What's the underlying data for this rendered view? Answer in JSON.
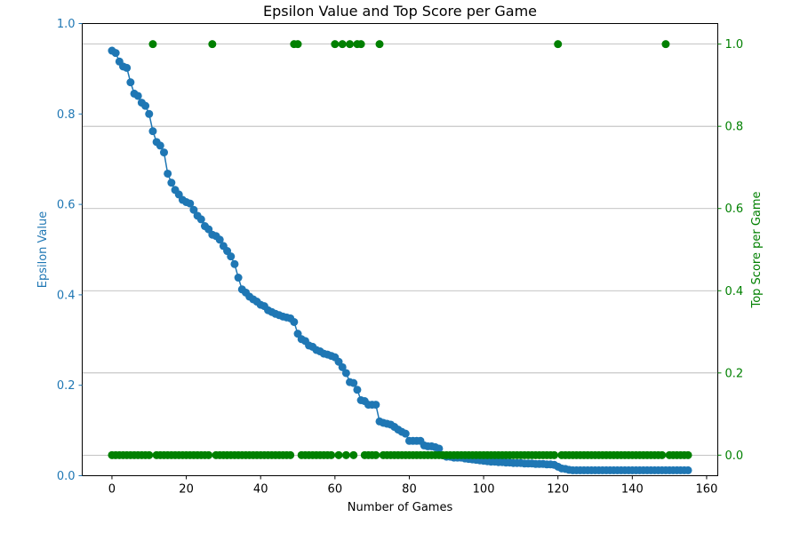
{
  "chart_data": {
    "type": "line",
    "title": "Epsilon Value and Top Score per Game",
    "xlabel": "Number of Games",
    "ylabel": "Epsilon Value",
    "ylabel_right": "Top Score per Game",
    "xlim": [
      -8,
      163
    ],
    "ylim": [
      0,
      1
    ],
    "ylim_right": [
      -0.05,
      1.05
    ],
    "xticks": [
      0,
      20,
      40,
      60,
      80,
      100,
      120,
      140,
      160
    ],
    "yticks_left": [
      0.0,
      0.2,
      0.4,
      0.6,
      0.8,
      1.0
    ],
    "yticks_right": [
      0.0,
      0.2,
      0.4,
      0.6,
      0.8,
      1.0
    ],
    "grid": "horizontal lines at right-axis ticks",
    "colors": {
      "epsilon": "#1f77b4",
      "score": "#008000"
    },
    "series": [
      {
        "name": "Epsilon Value",
        "axis": "left",
        "style": "line+markers",
        "x": [
          0,
          1,
          2,
          3,
          4,
          5,
          6,
          7,
          8,
          9,
          10,
          11,
          12,
          13,
          14,
          15,
          16,
          17,
          18,
          19,
          20,
          21,
          22,
          23,
          24,
          25,
          26,
          27,
          28,
          29,
          30,
          31,
          32,
          33,
          34,
          35,
          36,
          37,
          38,
          39,
          40,
          41,
          42,
          43,
          44,
          45,
          46,
          47,
          48,
          49,
          50,
          51,
          52,
          53,
          54,
          55,
          56,
          57,
          58,
          59,
          60,
          61,
          62,
          63,
          64,
          65,
          66,
          67,
          68,
          69,
          70,
          71,
          72,
          73,
          74,
          75,
          76,
          77,
          78,
          79,
          80,
          81,
          82,
          83,
          84,
          85,
          86,
          87,
          88,
          89,
          90,
          91,
          92,
          93,
          94,
          95,
          96,
          97,
          98,
          99,
          100,
          101,
          102,
          103,
          104,
          105,
          106,
          107,
          108,
          109,
          110,
          111,
          112,
          113,
          114,
          115,
          116,
          117,
          118,
          119,
          120,
          121,
          122,
          123,
          124,
          125,
          126,
          127,
          128,
          129,
          130,
          131,
          132,
          133,
          134,
          135,
          136,
          137,
          138,
          139,
          140,
          141,
          142,
          143,
          144,
          145,
          146,
          147,
          148,
          149,
          150,
          151,
          152,
          153,
          154,
          155
        ],
        "values": [
          0.94,
          0.935,
          0.916,
          0.905,
          0.902,
          0.87,
          0.845,
          0.84,
          0.825,
          0.818,
          0.8,
          0.762,
          0.738,
          0.73,
          0.715,
          0.668,
          0.648,
          0.632,
          0.622,
          0.61,
          0.605,
          0.602,
          0.588,
          0.575,
          0.567,
          0.552,
          0.545,
          0.533,
          0.53,
          0.522,
          0.508,
          0.497,
          0.485,
          0.468,
          0.438,
          0.412,
          0.405,
          0.396,
          0.39,
          0.385,
          0.378,
          0.375,
          0.366,
          0.362,
          0.358,
          0.355,
          0.352,
          0.35,
          0.348,
          0.34,
          0.314,
          0.302,
          0.298,
          0.288,
          0.285,
          0.278,
          0.275,
          0.27,
          0.268,
          0.265,
          0.262,
          0.252,
          0.24,
          0.227,
          0.207,
          0.205,
          0.19,
          0.167,
          0.165,
          0.157,
          0.157,
          0.157,
          0.12,
          0.117,
          0.115,
          0.113,
          0.108,
          0.102,
          0.097,
          0.093,
          0.077,
          0.077,
          0.077,
          0.077,
          0.067,
          0.065,
          0.065,
          0.063,
          0.06,
          0.045,
          0.042,
          0.042,
          0.04,
          0.04,
          0.04,
          0.038,
          0.037,
          0.036,
          0.035,
          0.034,
          0.033,
          0.032,
          0.031,
          0.031,
          0.03,
          0.03,
          0.029,
          0.029,
          0.028,
          0.028,
          0.028,
          0.027,
          0.027,
          0.027,
          0.026,
          0.026,
          0.026,
          0.025,
          0.025,
          0.024,
          0.02,
          0.016,
          0.015,
          0.013,
          0.012,
          0.012,
          0.012,
          0.012,
          0.012,
          0.012,
          0.012,
          0.012,
          0.012,
          0.012,
          0.012,
          0.012,
          0.012,
          0.012,
          0.012,
          0.012,
          0.012,
          0.012,
          0.012,
          0.012,
          0.012,
          0.012,
          0.012,
          0.012,
          0.012,
          0.012,
          0.012,
          0.012,
          0.012,
          0.012,
          0.012,
          0.012
        ]
      },
      {
        "name": "Top Score per Game",
        "axis": "right",
        "style": "markers",
        "x": [
          0,
          1,
          2,
          3,
          4,
          5,
          6,
          7,
          8,
          9,
          10,
          11,
          12,
          13,
          14,
          15,
          16,
          17,
          18,
          19,
          20,
          21,
          22,
          23,
          24,
          25,
          26,
          27,
          28,
          29,
          30,
          31,
          32,
          33,
          34,
          35,
          36,
          37,
          38,
          39,
          40,
          41,
          42,
          43,
          44,
          45,
          46,
          47,
          48,
          49,
          50,
          51,
          52,
          53,
          54,
          55,
          56,
          57,
          58,
          59,
          60,
          61,
          62,
          63,
          64,
          65,
          66,
          67,
          68,
          69,
          70,
          71,
          72,
          73,
          74,
          75,
          76,
          77,
          78,
          79,
          80,
          81,
          82,
          83,
          84,
          85,
          86,
          87,
          88,
          89,
          90,
          91,
          92,
          93,
          94,
          95,
          96,
          97,
          98,
          99,
          100,
          101,
          102,
          103,
          104,
          105,
          106,
          107,
          108,
          109,
          110,
          111,
          112,
          113,
          114,
          115,
          116,
          117,
          118,
          119,
          120,
          121,
          122,
          123,
          124,
          125,
          126,
          127,
          128,
          129,
          130,
          131,
          132,
          133,
          134,
          135,
          136,
          137,
          138,
          139,
          140,
          141,
          142,
          143,
          144,
          145,
          146,
          147,
          148,
          149,
          150,
          151,
          152,
          153,
          154,
          155
        ],
        "values": [
          0,
          0,
          0,
          0,
          0,
          0,
          0,
          0,
          0,
          0,
          0,
          1,
          0,
          0,
          0,
          0,
          0,
          0,
          0,
          0,
          0,
          0,
          0,
          0,
          0,
          0,
          0,
          1,
          0,
          0,
          0,
          0,
          0,
          0,
          0,
          0,
          0,
          0,
          0,
          0,
          0,
          0,
          0,
          0,
          0,
          0,
          0,
          0,
          0,
          1,
          1,
          0,
          0,
          0,
          0,
          0,
          0,
          0,
          0,
          0,
          1,
          0,
          1,
          0,
          1,
          0,
          1,
          1,
          0,
          0,
          0,
          0,
          1,
          0,
          0,
          0,
          0,
          0,
          0,
          0,
          0,
          0,
          0,
          0,
          0,
          0,
          0,
          0,
          0,
          0,
          0,
          0,
          0,
          0,
          0,
          0,
          0,
          0,
          0,
          0,
          0,
          0,
          0,
          0,
          0,
          0,
          0,
          0,
          0,
          0,
          0,
          0,
          0,
          0,
          0,
          0,
          0,
          0,
          0,
          0,
          1,
          0,
          0,
          0,
          0,
          0,
          0,
          0,
          0,
          0,
          0,
          0,
          0,
          0,
          0,
          0,
          0,
          0,
          0,
          0,
          0,
          0,
          0,
          0,
          0,
          0,
          0,
          0,
          0,
          1,
          0,
          0,
          0,
          0,
          0,
          0
        ]
      }
    ]
  }
}
